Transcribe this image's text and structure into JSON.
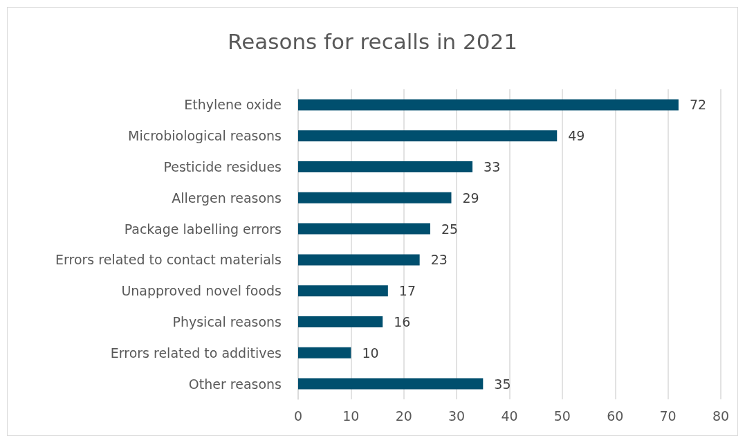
{
  "chart_data": {
    "type": "bar",
    "orientation": "horizontal",
    "title": "Reasons for recalls in 2021",
    "categories": [
      "Ethylene oxide",
      "Microbiological reasons",
      "Pesticide residues",
      "Allergen reasons",
      "Package labelling errors",
      "Errors related to contact materials",
      "Unapproved novel foods",
      "Physical reasons",
      "Errors related to additives",
      "Other reasons"
    ],
    "values": [
      72,
      49,
      33,
      29,
      25,
      23,
      17,
      16,
      10,
      35
    ],
    "color": "#004f6e",
    "xlim": [
      0,
      80
    ],
    "xticks": [
      0,
      10,
      20,
      30,
      40,
      50,
      60,
      70,
      80
    ],
    "grid": "x",
    "data_labels": true
  }
}
